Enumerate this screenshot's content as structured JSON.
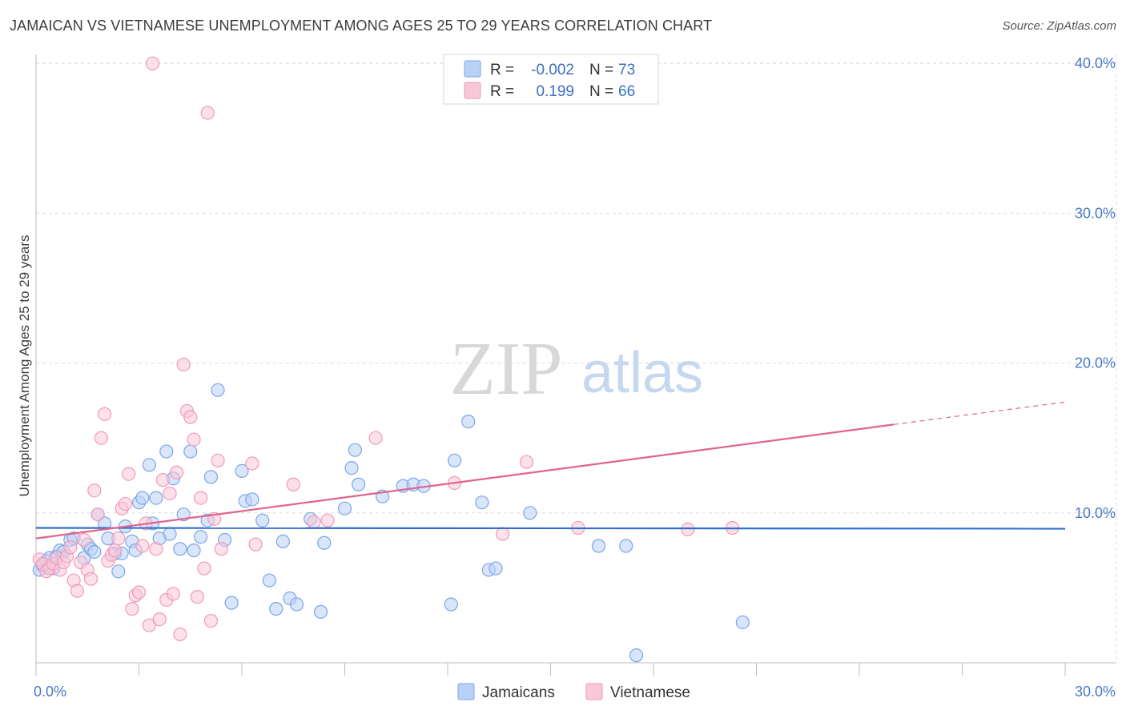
{
  "chart_data": {
    "type": "scatter",
    "title": "JAMAICAN VS VIETNAMESE UNEMPLOYMENT AMONG AGES 25 TO 29 YEARS CORRELATION CHART",
    "source": "Source: ZipAtlas.com",
    "ylabel": "Unemployment Among Ages 25 to 29 years",
    "xlabel": "",
    "xlim": [
      0,
      30
    ],
    "ylim": [
      0,
      40.6
    ],
    "x_tick_labels": [
      "0.0%",
      "30.0%"
    ],
    "y_ticks": [
      10,
      20,
      30,
      40
    ],
    "y_tick_labels": [
      "10.0%",
      "20.0%",
      "30.0%",
      "40.0%"
    ],
    "grid": true,
    "watermark": "ZIPatlas",
    "legend_stats": {
      "r_label": "R =",
      "n_label": "N =",
      "rows": [
        {
          "r": "-0.002",
          "n": "73"
        },
        {
          "r": "0.199",
          "n": "66"
        }
      ]
    },
    "series": [
      {
        "name": "Jamaicans",
        "color": "#7aa6e8",
        "fill": "#b9d1f5",
        "trend_color": "#2f6fd0",
        "trend": {
          "x": [
            0,
            30
          ],
          "y": [
            9.0,
            8.95
          ]
        },
        "points": [
          [
            0.1,
            6.2
          ],
          [
            0.2,
            6.5
          ],
          [
            0.3,
            6.8
          ],
          [
            0.4,
            7.0
          ],
          [
            0.5,
            6.3
          ],
          [
            0.6,
            7.1
          ],
          [
            0.7,
            7.5
          ],
          [
            0.8,
            7.4
          ],
          [
            1.0,
            8.2
          ],
          [
            1.1,
            8.3
          ],
          [
            1.4,
            7.0
          ],
          [
            1.5,
            7.9
          ],
          [
            1.6,
            7.6
          ],
          [
            1.7,
            7.4
          ],
          [
            1.8,
            9.9
          ],
          [
            2.0,
            9.3
          ],
          [
            2.1,
            8.3
          ],
          [
            2.3,
            7.3
          ],
          [
            2.4,
            6.1
          ],
          [
            2.5,
            7.3
          ],
          [
            2.6,
            9.1
          ],
          [
            2.8,
            8.1
          ],
          [
            2.9,
            7.5
          ],
          [
            3.0,
            10.7
          ],
          [
            3.1,
            11.0
          ],
          [
            3.3,
            13.2
          ],
          [
            3.4,
            9.3
          ],
          [
            3.5,
            11.0
          ],
          [
            3.6,
            8.3
          ],
          [
            3.8,
            14.1
          ],
          [
            3.9,
            8.6
          ],
          [
            4.0,
            12.3
          ],
          [
            4.2,
            7.6
          ],
          [
            4.3,
            9.9
          ],
          [
            4.5,
            14.1
          ],
          [
            4.6,
            7.5
          ],
          [
            4.8,
            8.4
          ],
          [
            5.0,
            9.5
          ],
          [
            5.1,
            12.4
          ],
          [
            5.3,
            18.2
          ],
          [
            5.5,
            8.2
          ],
          [
            5.7,
            4.0
          ],
          [
            6.0,
            12.8
          ],
          [
            6.1,
            10.8
          ],
          [
            6.3,
            10.9
          ],
          [
            6.6,
            9.5
          ],
          [
            6.8,
            5.5
          ],
          [
            7.0,
            3.6
          ],
          [
            7.2,
            8.1
          ],
          [
            7.4,
            4.3
          ],
          [
            7.6,
            3.9
          ],
          [
            8.0,
            9.6
          ],
          [
            8.3,
            3.4
          ],
          [
            8.4,
            8.0
          ],
          [
            9.0,
            10.3
          ],
          [
            9.2,
            13.0
          ],
          [
            9.3,
            14.2
          ],
          [
            9.4,
            11.9
          ],
          [
            10.1,
            11.1
          ],
          [
            10.7,
            11.8
          ],
          [
            11.0,
            11.9
          ],
          [
            11.3,
            11.8
          ],
          [
            12.1,
            3.9
          ],
          [
            12.2,
            13.5
          ],
          [
            12.6,
            16.1
          ],
          [
            13.0,
            10.7
          ],
          [
            13.2,
            6.2
          ],
          [
            13.4,
            6.3
          ],
          [
            14.4,
            10.0
          ],
          [
            16.4,
            7.8
          ],
          [
            17.2,
            7.8
          ],
          [
            17.5,
            0.5
          ],
          [
            20.6,
            2.7
          ]
        ]
      },
      {
        "name": "Vietnamese",
        "color": "#f09ab8",
        "fill": "#f9c8d8",
        "trend_color": "#e0648e",
        "trend": {
          "x": [
            0,
            25
          ],
          "y": [
            8.3,
            15.9
          ]
        },
        "trend_dashed": {
          "x": [
            25,
            30
          ],
          "y": [
            15.9,
            17.4
          ]
        },
        "points": [
          [
            0.1,
            6.9
          ],
          [
            0.2,
            6.6
          ],
          [
            0.3,
            6.1
          ],
          [
            0.4,
            6.3
          ],
          [
            0.5,
            6.6
          ],
          [
            0.6,
            7.0
          ],
          [
            0.7,
            6.2
          ],
          [
            0.8,
            6.7
          ],
          [
            0.9,
            7.1
          ],
          [
            1.0,
            7.7
          ],
          [
            1.1,
            5.5
          ],
          [
            1.2,
            4.8
          ],
          [
            1.3,
            6.7
          ],
          [
            1.4,
            8.2
          ],
          [
            1.5,
            6.2
          ],
          [
            1.6,
            5.6
          ],
          [
            1.7,
            11.5
          ],
          [
            1.8,
            9.9
          ],
          [
            1.9,
            15.0
          ],
          [
            2.0,
            16.6
          ],
          [
            2.1,
            6.8
          ],
          [
            2.2,
            7.2
          ],
          [
            2.3,
            7.5
          ],
          [
            2.4,
            8.3
          ],
          [
            2.5,
            10.3
          ],
          [
            2.6,
            10.6
          ],
          [
            2.7,
            12.6
          ],
          [
            2.8,
            3.6
          ],
          [
            2.9,
            4.5
          ],
          [
            3.0,
            4.7
          ],
          [
            3.1,
            7.8
          ],
          [
            3.2,
            9.3
          ],
          [
            3.3,
            2.5
          ],
          [
            3.4,
            40.0
          ],
          [
            3.5,
            7.6
          ],
          [
            3.6,
            2.9
          ],
          [
            3.7,
            12.2
          ],
          [
            3.8,
            4.2
          ],
          [
            3.9,
            11.3
          ],
          [
            4.0,
            4.6
          ],
          [
            4.1,
            12.7
          ],
          [
            4.2,
            1.9
          ],
          [
            4.3,
            19.9
          ],
          [
            4.4,
            16.8
          ],
          [
            4.5,
            16.4
          ],
          [
            4.6,
            14.9
          ],
          [
            4.7,
            4.4
          ],
          [
            4.8,
            11.0
          ],
          [
            4.9,
            6.3
          ],
          [
            5.0,
            36.7
          ],
          [
            5.1,
            2.8
          ],
          [
            5.2,
            9.6
          ],
          [
            5.3,
            13.5
          ],
          [
            5.4,
            7.6
          ],
          [
            6.3,
            13.3
          ],
          [
            7.5,
            11.9
          ],
          [
            8.1,
            9.4
          ],
          [
            8.5,
            9.5
          ],
          [
            9.9,
            15.0
          ],
          [
            12.2,
            12.0
          ],
          [
            13.6,
            8.6
          ],
          [
            14.3,
            13.4
          ],
          [
            15.8,
            9.0
          ],
          [
            20.3,
            9.0
          ],
          [
            19.0,
            8.9
          ],
          [
            6.4,
            7.9
          ]
        ]
      }
    ],
    "bottom_legend": [
      "Jamaicans",
      "Vietnamese"
    ]
  }
}
